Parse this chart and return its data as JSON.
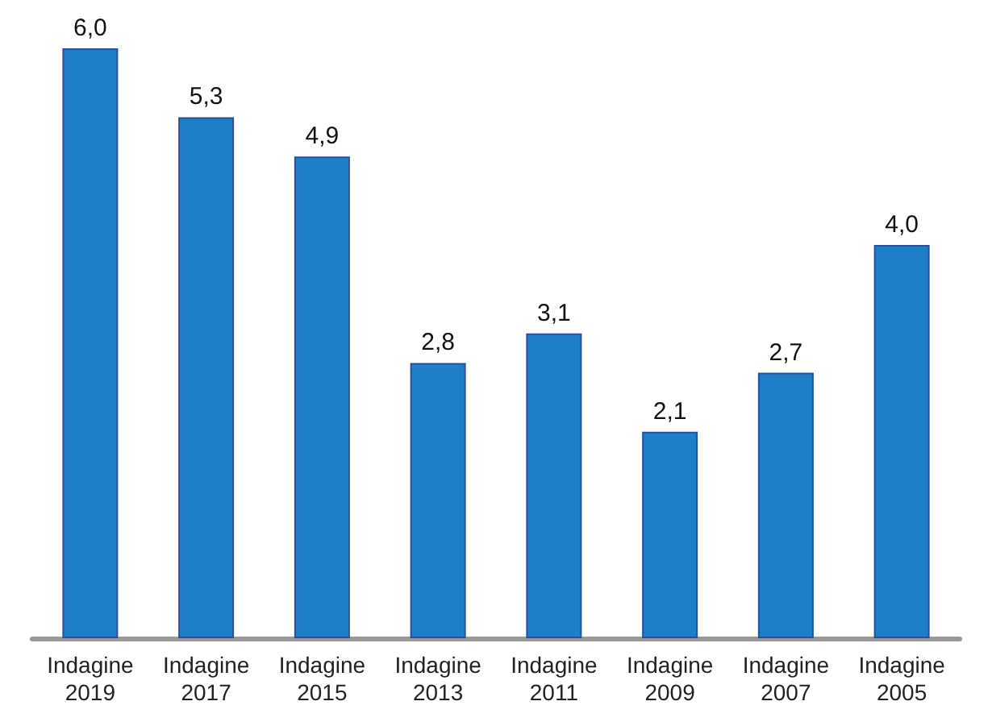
{
  "chart_data": {
    "type": "bar",
    "categories": [
      "Indagine 2019",
      "Indagine 2017",
      "Indagine 2015",
      "Indagine 2013",
      "Indagine 2011",
      "Indagine 2009",
      "Indagine 2007",
      "Indagine 2005"
    ],
    "values": [
      6.0,
      5.3,
      4.9,
      2.8,
      3.1,
      2.1,
      2.7,
      4.0
    ],
    "value_labels": [
      "6,0",
      "5,3",
      "4,9",
      "2,8",
      "3,1",
      "2,1",
      "2,7",
      "4,0"
    ],
    "color": "#1e7fc9"
  }
}
